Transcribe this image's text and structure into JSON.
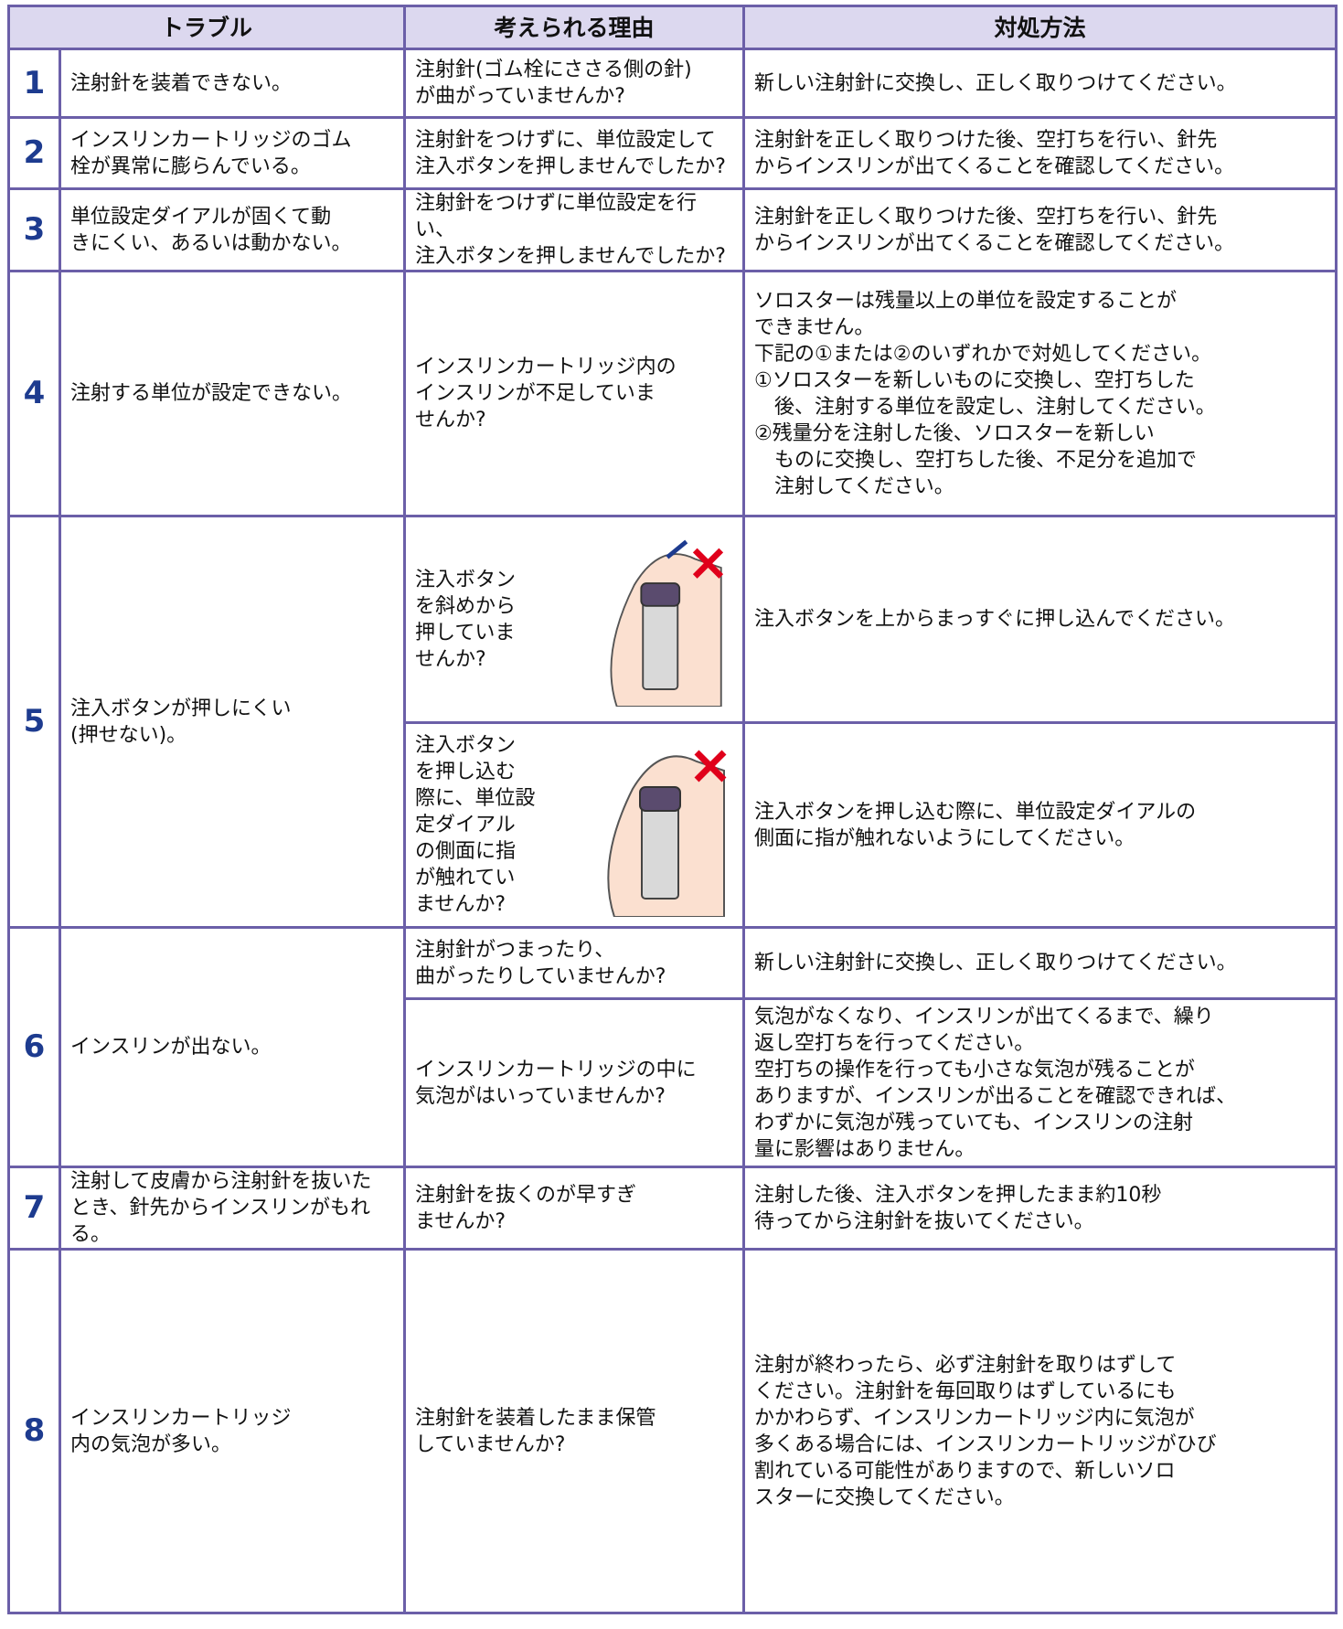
{
  "table": {
    "header": [
      "トラブル",
      "考えられる理由",
      "対処方法"
    ],
    "rows": [
      {
        "number": "1",
        "trouble": "注射針を装着できない。",
        "causes": [
          {
            "reason": "注射針(ゴム栓にささる側の針)\nが曲がっていませんか?",
            "remedy": "新しい注射針に交換し、正しく取りつけてください。"
          }
        ]
      },
      {
        "number": "2",
        "trouble": "インスリンカートリッジのゴム\n栓が異常に膨らんでいる。",
        "causes": [
          {
            "reason": "注射針をつけずに、単位設定して\n注入ボタンを押しませんでしたか?",
            "remedy": "注射針を正しく取りつけた後、空打ちを行い、針先\nからインスリンが出てくることを確認してください。"
          }
        ]
      },
      {
        "number": "3",
        "trouble": "単位設定ダイアルが固くて動\nきにくい、あるいは動かない。",
        "causes": [
          {
            "reason": "注射針をつけずに単位設定を行い、\n注入ボタンを押しませんでしたか?",
            "remedy": "注射針を正しく取りつけた後、空打ちを行い、針先\nからインスリンが出てくることを確認してください。"
          }
        ]
      },
      {
        "number": "4",
        "trouble": "注射する単位が設定できない。",
        "causes": [
          {
            "reason": "インスリンカートリッジ内の\nインスリンが不足していま\nせんか?",
            "remedy": "ソロスターは残量以上の単位を設定することが\nできません。\n下記の①または②のいずれかで対処してください。\n①ソロスターを新しいものに交換し、空打ちした\n　後、注射する単位を設定し、注射してください。\n②残量分を注射した後、ソロスターを新しい\n　ものに交換し、空打ちした後、不足分を追加で\n　注射してください。"
          }
        ]
      },
      {
        "number": "5",
        "trouble": "注入ボタンが押しにくい\n(押せない)。",
        "causes": [
          {
            "reason": "注入ボタン\nを斜めから\n押していま\nせんか?",
            "remedy": "注入ボタンを上からまっすぐに押し込んでください。"
          },
          {
            "reason": "注入ボタン\nを押し込む\n際に、単位設\n定ダイアル\nの側面に指\nが触れてい\nませんか?",
            "remedy": "注入ボタンを押し込む際に、単位設定ダイアルの\n側面に指が触れないようにしてください。"
          }
        ]
      },
      {
        "number": "6",
        "trouble": "インスリンが出ない。",
        "causes": [
          {
            "reason": "注射針がつまったり、\n曲がったりしていませんか?",
            "remedy": "新しい注射針に交換し、正しく取りつけてください。"
          },
          {
            "reason": "インスリンカートリッジの中に\n気泡がはいっていませんか?",
            "remedy": "気泡がなくなり、インスリンが出てくるまで、繰り\n返し空打ちを行ってください。\n空打ちの操作を行っても小さな気泡が残ることが\nありますが、インスリンが出ることを確認できれば、\nわずかに気泡が残っていても、インスリンの注射\n量に影響はありません。"
          }
        ]
      },
      {
        "number": "7",
        "trouble": "注射して皮膚から注射針を抜いた\nとき、針先からインスリンがもれる。",
        "causes": [
          {
            "reason": "注射針を抜くのが早すぎ\nませんか?",
            "remedy": "注射した後、注入ボタンを押したまま約10秒\n待ってから注射針を抜いてください。"
          }
        ]
      },
      {
        "number": "8",
        "trouble": "インスリンカートリッジ\n内の気泡が多い。",
        "causes": [
          {
            "reason": "注射針を装着したまま保管\nしていませんか?",
            "remedy": "注射が終わったら、必ず注射針を取りはずして\nください。注射針を毎回取りはずしているにも\nかかわらず、インスリンカートリッジ内に気泡が\n多くある場合には、インスリンカートリッジがひび\n割れている可能性がありますので、新しいソロ\nスターに交換してください。"
          }
        ]
      }
    ]
  }
}
